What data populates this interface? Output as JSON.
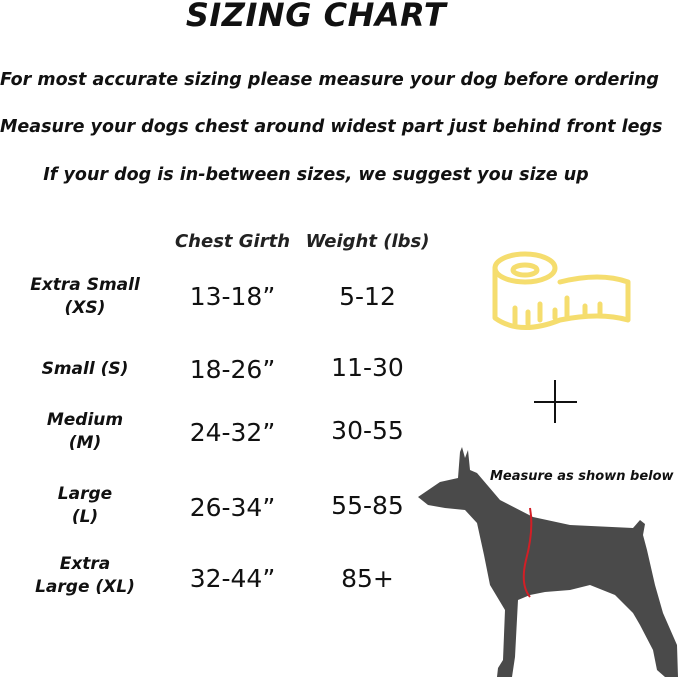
{
  "title": "SIZING CHART",
  "instructions": [
    "For most accurate sizing please measure your dog before ordering",
    "Measure your dogs chest around widest part just behind front legs",
    "If your dog is in-between sizes, we suggest you size up"
  ],
  "table": {
    "headers": [
      "Chest Girth",
      "Weight (lbs)"
    ],
    "rows": [
      {
        "size_line1": "Extra Small",
        "size_line2": "(XS)",
        "chest": "13-18”",
        "weight": "5-12"
      },
      {
        "size_line1": "Small (S)",
        "size_line2": "",
        "chest": "18-26”",
        "weight": "11-30"
      },
      {
        "size_line1": "Medium",
        "size_line2": "(M)",
        "chest": "24-32”",
        "weight": "30-55"
      },
      {
        "size_line1": "Large",
        "size_line2": "(L)",
        "chest": "26-34”",
        "weight": "55-85"
      },
      {
        "size_line1": "Extra",
        "size_line2": "Large (XL)",
        "chest": "32-44”",
        "weight": "85+"
      }
    ]
  },
  "illustration": {
    "measure_label": "Measure as shown below",
    "icons": [
      "measuring-tape-icon",
      "plus-icon",
      "dog-silhouette"
    ],
    "colors": {
      "tape": "#f5dd6e",
      "dog": "#4a4a4a",
      "measure_line": "#d21f26"
    }
  }
}
